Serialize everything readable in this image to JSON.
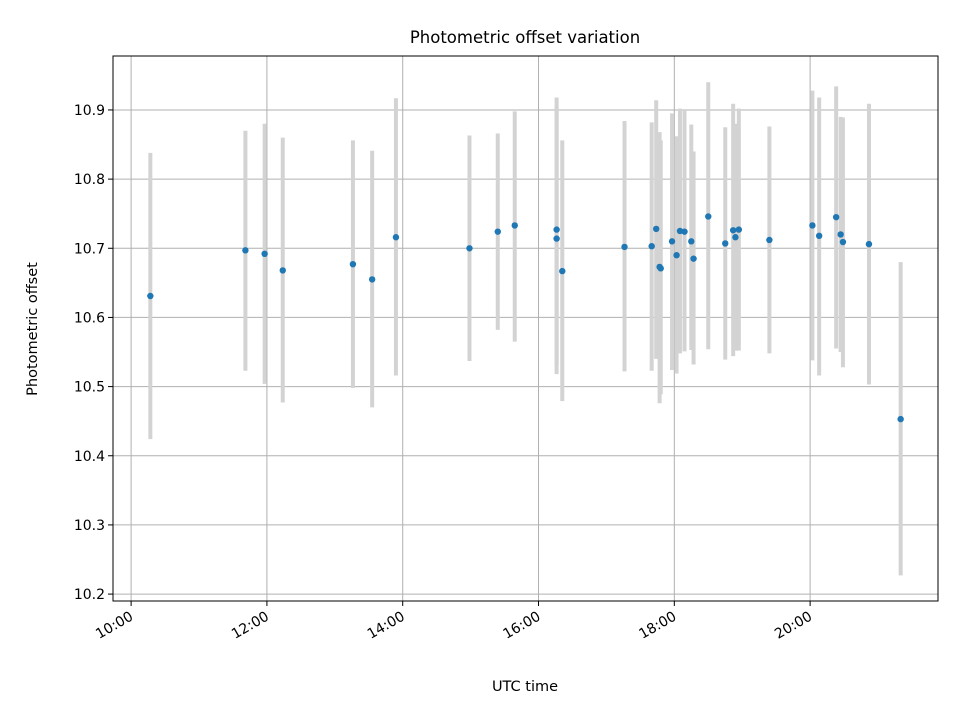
{
  "chart_data": {
    "type": "scatter",
    "title": "Photometric offset variation",
    "xlabel": "UTC time",
    "ylabel": "Photometric offset",
    "x_unit": "UTC time of day (HH:MM)",
    "xlim": [
      "09:44",
      "21:53"
    ],
    "ylim": [
      10.19,
      10.978
    ],
    "x_ticks": [
      "10:00",
      "12:00",
      "14:00",
      "16:00",
      "18:00",
      "20:00"
    ],
    "y_ticks": [
      10.2,
      10.3,
      10.4,
      10.5,
      10.6,
      10.7,
      10.8,
      10.9
    ],
    "y_tick_labels": [
      "10.2",
      "10.3",
      "10.4",
      "10.5",
      "10.6",
      "10.7",
      "10.8",
      "10.9"
    ],
    "x_tick_rotation": "30 degrees, right-aligned",
    "grid": true,
    "legend": "none",
    "colors": {
      "points": "#1f77b4",
      "error_bars": "#d3d3d3",
      "grid": "#b0b0b0",
      "axes": "#000000"
    },
    "points": [
      {
        "x": "10:17",
        "y": 10.631,
        "y_low": 10.424,
        "y_high": 10.838
      },
      {
        "x": "11:41",
        "y": 10.697,
        "y_low": 10.523,
        "y_high": 10.87
      },
      {
        "x": "11:58",
        "y": 10.692,
        "y_low": 10.504,
        "y_high": 10.88
      },
      {
        "x": "12:14",
        "y": 10.668,
        "y_low": 10.477,
        "y_high": 10.86
      },
      {
        "x": "13:16",
        "y": 10.677,
        "y_low": 10.498,
        "y_high": 10.856
      },
      {
        "x": "13:33",
        "y": 10.655,
        "y_low": 10.47,
        "y_high": 10.841
      },
      {
        "x": "13:54",
        "y": 10.716,
        "y_low": 10.516,
        "y_high": 10.917
      },
      {
        "x": "14:59",
        "y": 10.7,
        "y_low": 10.537,
        "y_high": 10.863
      },
      {
        "x": "15:24",
        "y": 10.724,
        "y_low": 10.582,
        "y_high": 10.866
      },
      {
        "x": "15:39",
        "y": 10.733,
        "y_low": 10.565,
        "y_high": 10.898
      },
      {
        "x": "16:16",
        "y": 10.727,
        "y_low": 10.518,
        "y_high": 10.918
      },
      {
        "x": "16:16",
        "y": 10.714,
        "y_low": 10.53,
        "y_high": 10.905
      },
      {
        "x": "16:21",
        "y": 10.667,
        "y_low": 10.479,
        "y_high": 10.856
      },
      {
        "x": "17:16",
        "y": 10.702,
        "y_low": 10.522,
        "y_high": 10.884
      },
      {
        "x": "17:40",
        "y": 10.703,
        "y_low": 10.523,
        "y_high": 10.882
      },
      {
        "x": "17:44",
        "y": 10.728,
        "y_low": 10.54,
        "y_high": 10.914
      },
      {
        "x": "17:47",
        "y": 10.673,
        "y_low": 10.476,
        "y_high": 10.868
      },
      {
        "x": "17:48",
        "y": 10.671,
        "y_low": 10.489,
        "y_high": 10.856
      },
      {
        "x": "17:58",
        "y": 10.71,
        "y_low": 10.524,
        "y_high": 10.895
      },
      {
        "x": "18:02",
        "y": 10.69,
        "y_low": 10.519,
        "y_high": 10.862
      },
      {
        "x": "18:05",
        "y": 10.725,
        "y_low": 10.548,
        "y_high": 10.902
      },
      {
        "x": "18:09",
        "y": 10.724,
        "y_low": 10.551,
        "y_high": 10.9
      },
      {
        "x": "18:15",
        "y": 10.71,
        "y_low": 10.553,
        "y_high": 10.879
      },
      {
        "x": "18:17",
        "y": 10.685,
        "y_low": 10.532,
        "y_high": 10.84
      },
      {
        "x": "18:30",
        "y": 10.746,
        "y_low": 10.554,
        "y_high": 10.94
      },
      {
        "x": "18:45",
        "y": 10.707,
        "y_low": 10.539,
        "y_high": 10.875
      },
      {
        "x": "18:52",
        "y": 10.726,
        "y_low": 10.544,
        "y_high": 10.909
      },
      {
        "x": "18:54",
        "y": 10.716,
        "y_low": 10.552,
        "y_high": 10.88
      },
      {
        "x": "18:57",
        "y": 10.727,
        "y_low": 10.552,
        "y_high": 10.902
      },
      {
        "x": "19:24",
        "y": 10.712,
        "y_low": 10.548,
        "y_high": 10.876
      },
      {
        "x": "20:02",
        "y": 10.733,
        "y_low": 10.538,
        "y_high": 10.928
      },
      {
        "x": "20:08",
        "y": 10.718,
        "y_low": 10.516,
        "y_high": 10.918
      },
      {
        "x": "20:23",
        "y": 10.745,
        "y_low": 10.555,
        "y_high": 10.934
      },
      {
        "x": "20:27",
        "y": 10.72,
        "y_low": 10.55,
        "y_high": 10.89
      },
      {
        "x": "20:29",
        "y": 10.709,
        "y_low": 10.528,
        "y_high": 10.889
      },
      {
        "x": "20:52",
        "y": 10.706,
        "y_low": 10.503,
        "y_high": 10.909
      },
      {
        "x": "21:20",
        "y": 10.453,
        "y_low": 10.227,
        "y_high": 10.68
      }
    ]
  }
}
